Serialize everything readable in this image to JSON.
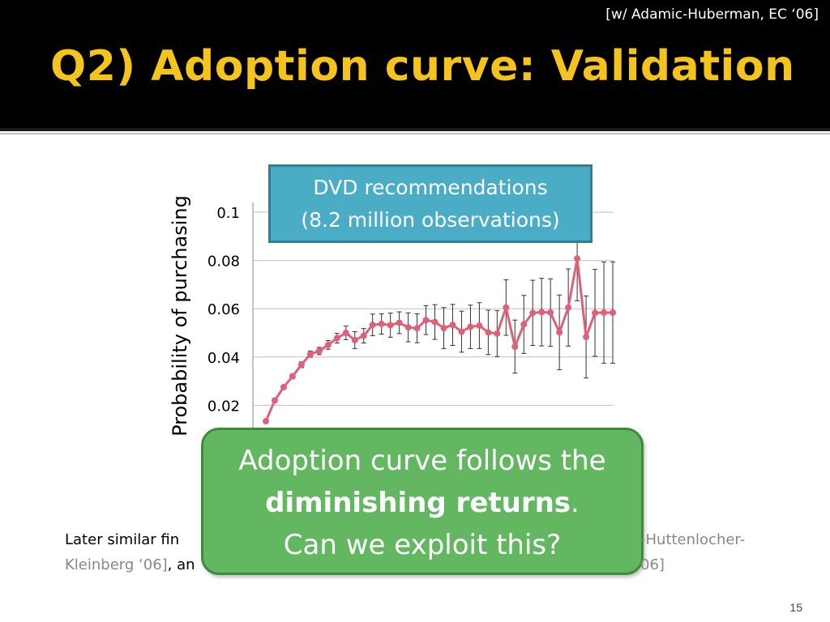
{
  "slide": {
    "citation": "[w/ Adamic-Huberman, EC ‘06]",
    "title": "Q2) Adoption curve: Validation",
    "page_number": "15",
    "callout_top_line1": "DVD recommendations",
    "callout_top_line2": "(8.2 million observations)",
    "callout_main_line1": "Adoption curve follows the",
    "callout_main_bold": "diminishing returns",
    "callout_main_period": ".",
    "callout_main_line3": "Can we exploit this?",
    "footnote_left_1": "Later similar fin",
    "footnote_left_2": "Kleinberg ‘06]",
    "footnote_left_2b": ", an",
    "footnote_right_1": "-Huttenlocher-",
    "footnote_right_2": "06]"
  },
  "colors": {
    "header_bg": "#000000",
    "title": "#f4c31c",
    "series": "#e0607a",
    "callout_blue": "#4bacc6",
    "callout_green": "#63b760"
  },
  "chart_data": {
    "type": "line",
    "ylabel": "Probability of purchasing",
    "xlabel": "",
    "ylim": [
      0,
      0.1
    ],
    "yticks": [
      "0.02",
      "0.04",
      "0.06",
      "0.08",
      "0.1"
    ],
    "grid": true,
    "series": [
      {
        "values": [
          0.0134,
          0.022,
          0.0275,
          0.032,
          0.0368,
          0.0412,
          0.0425,
          0.045,
          0.0478,
          0.05,
          0.047,
          0.0488,
          0.0533,
          0.0537,
          0.0532,
          0.0542,
          0.0523,
          0.0519,
          0.0553,
          0.0545,
          0.052,
          0.0533,
          0.0505,
          0.0525,
          0.053,
          0.0502,
          0.0497,
          0.0605,
          0.0443,
          0.0535,
          0.0583,
          0.0586,
          0.0584,
          0.0502,
          0.0605,
          0.0808,
          0.0483,
          0.0583,
          0.0584,
          0.0584
        ],
        "error": [
          0.0005,
          0.0006,
          0.0008,
          0.001,
          0.0012,
          0.0013,
          0.0015,
          0.0018,
          0.002,
          0.0028,
          0.0035,
          0.003,
          0.0045,
          0.0042,
          0.005,
          0.0045,
          0.006,
          0.006,
          0.006,
          0.0072,
          0.0085,
          0.0085,
          0.0085,
          0.009,
          0.0095,
          0.0092,
          0.0095,
          0.0115,
          0.011,
          0.012,
          0.0135,
          0.014,
          0.014,
          0.0155,
          0.016,
          0.0175,
          0.017,
          0.018,
          0.021,
          0.021
        ]
      }
    ]
  }
}
